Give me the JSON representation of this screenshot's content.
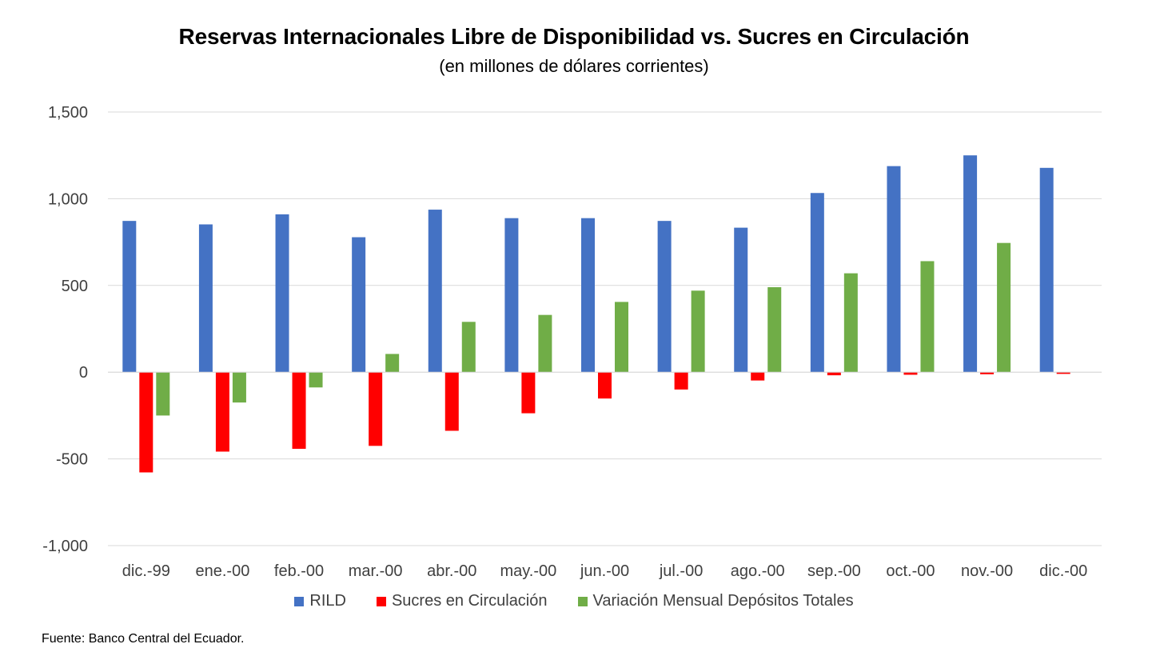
{
  "chart_data": {
    "type": "bar",
    "title": "Reservas Internacionales Libre de Disponibilidad vs. Sucres en Circulación",
    "subtitle": "(en millones de dólares corrientes)",
    "categories": [
      "dic.-99",
      "ene.-00",
      "feb.-00",
      "mar.-00",
      "abr.-00",
      "may.-00",
      "jun.-00",
      "jul.-00",
      "ago.-00",
      "sep.-00",
      "oct.-00",
      "nov.-00",
      "dic.-00"
    ],
    "series": [
      {
        "name": "RILD",
        "color": "#4472C4",
        "values": [
          872,
          852,
          910,
          778,
          937,
          888,
          888,
          872,
          833,
          1033,
          1188,
          1250,
          1178
        ]
      },
      {
        "name": "Sucres en Circulación",
        "color": "#FF0000",
        "values": [
          -578,
          -458,
          -442,
          -425,
          -338,
          -237,
          -152,
          -100,
          -48,
          -18,
          -15,
          -12,
          -10
        ]
      },
      {
        "name": "Variación Mensual Depósitos Totales",
        "color": "#70AD47",
        "values": [
          -250,
          -175,
          -88,
          105,
          290,
          330,
          405,
          470,
          490,
          570,
          640,
          745,
          null
        ]
      }
    ],
    "ylim": [
      -1000,
      1500
    ],
    "yticks": [
      -1000,
      -500,
      0,
      500,
      1000,
      1500
    ],
    "ytick_labels": [
      "-1,000",
      "-500",
      "0",
      "500",
      "1,000",
      "1,500"
    ],
    "grid": true,
    "legend_position": "bottom",
    "xlabel": "",
    "ylabel": ""
  },
  "footer": {
    "source": "Fuente: Banco Central del Ecuador."
  }
}
